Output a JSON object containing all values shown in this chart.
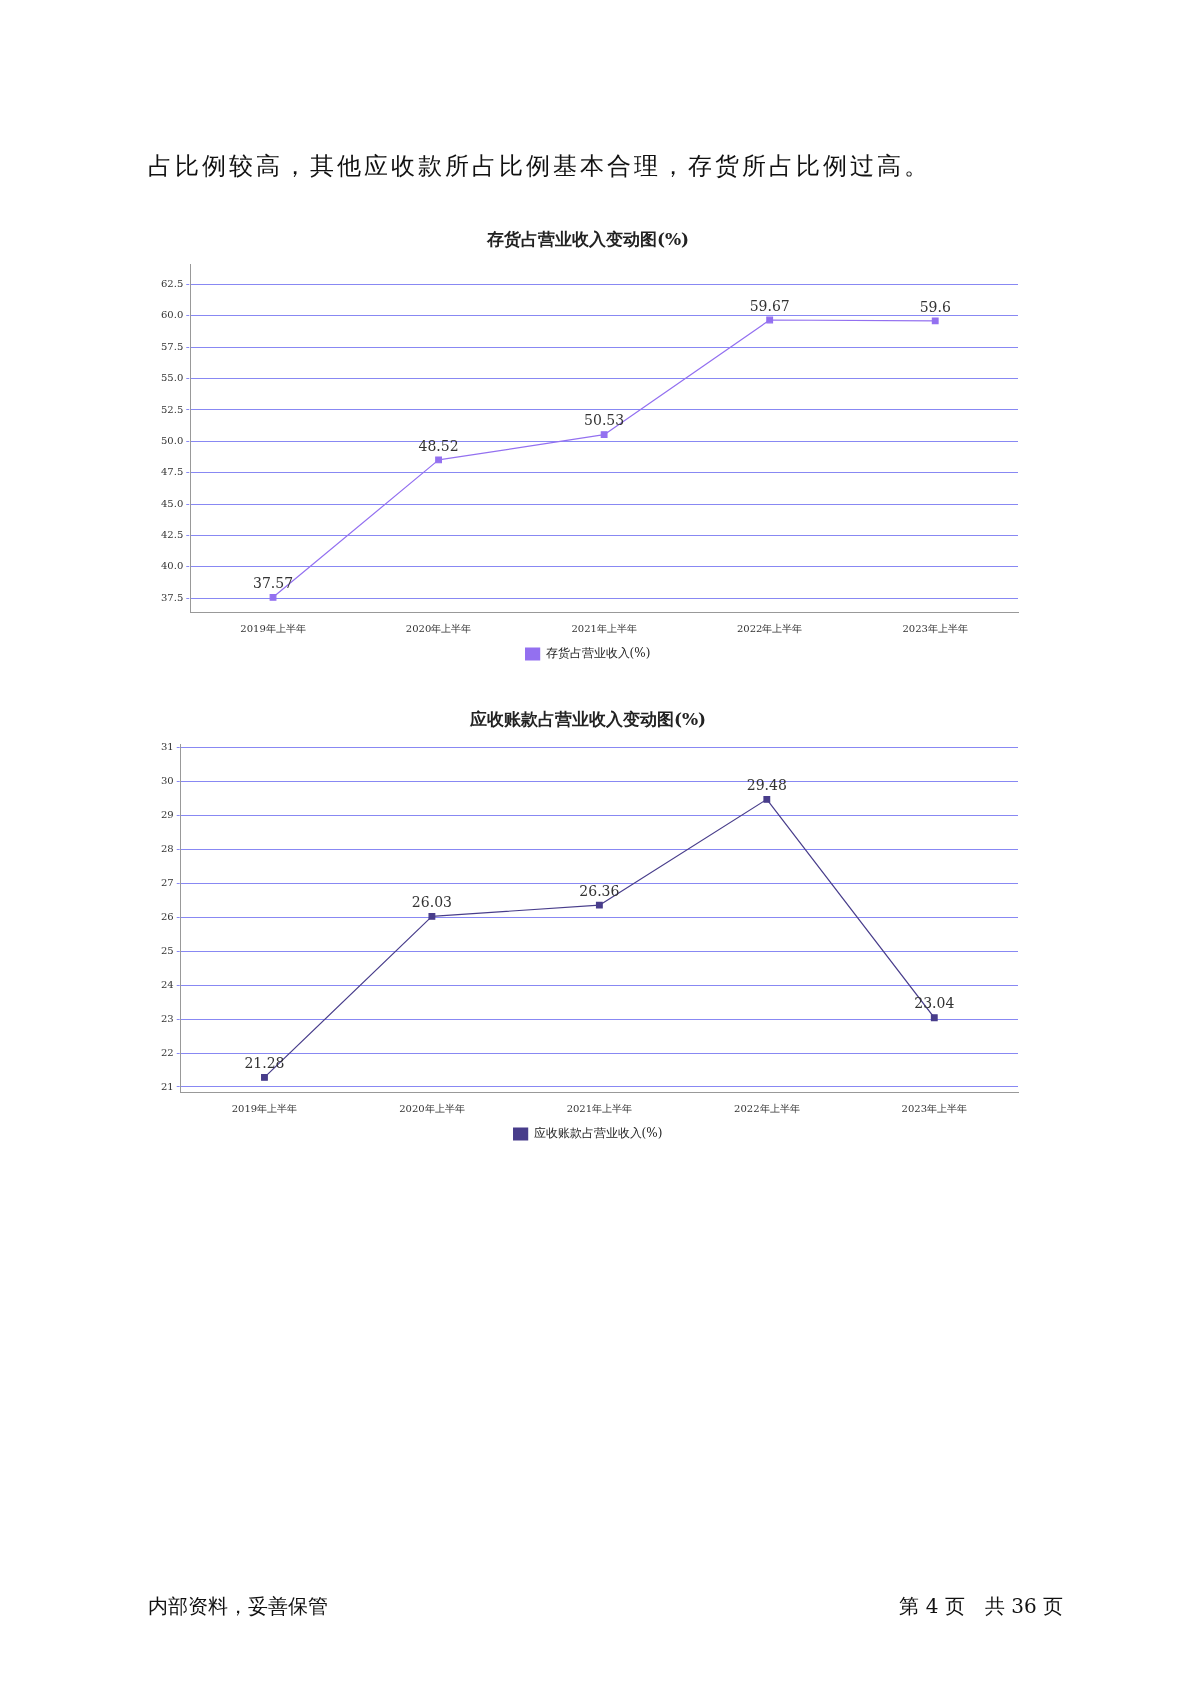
{
  "chart_data": [
    {
      "type": "line",
      "title": "存货占营业收入变动图(%)",
      "annotations": [
        "占比例较高，其他应收款所占比例基本合理，存货所占比例过高。"
      ],
      "categories": [
        "2019年上半年",
        "2020年上半年",
        "2021年上半年",
        "2022年上半年",
        "2023年上半年"
      ],
      "series": [
        {
          "name": "存货占营业收入(%)",
          "color": "#9370f0",
          "values": [
            37.57,
            48.52,
            50.53,
            59.67,
            59.6
          ]
        }
      ],
      "ylim": [
        36.4,
        64.1
      ],
      "yticks": [
        {
          "value": 37.5,
          "label": "37.5"
        },
        {
          "value": 40,
          "label": "40.0"
        },
        {
          "value": 42.5,
          "label": "42.5"
        },
        {
          "value": 45,
          "label": "45.0"
        },
        {
          "value": 47.5,
          "label": "47.5"
        },
        {
          "value": 50,
          "label": "50.0"
        },
        {
          "value": 52.5,
          "label": "52.5"
        },
        {
          "value": 55,
          "label": "55.0"
        },
        {
          "value": 57.5,
          "label": "57.5"
        },
        {
          "value": 60,
          "label": "60.0"
        },
        {
          "value": 62.5,
          "label": "62.5"
        }
      ],
      "grid": "y",
      "legend": "bottom",
      "marker": "square",
      "line_style": "solid",
      "data_labels": true
    },
    {
      "type": "line",
      "title": "应收账款占营业收入变动图(%)",
      "annotations": [
        "内部资料，妥善保管",
        "第 4 页　共 36 页"
      ],
      "categories": [
        "2019年上半年",
        "2020年上半年",
        "2021年上半年",
        "2022年上半年",
        "2023年上半年"
      ],
      "series": [
        {
          "name": "应收账款占营业收入(%)",
          "color": "#483d8b",
          "values": [
            21.28,
            26.03,
            26.36,
            29.48,
            23.04
          ]
        }
      ],
      "ylim": [
        20.85,
        31.1
      ],
      "yticks": [
        21,
        22,
        23,
        24,
        25,
        26,
        27,
        28,
        29,
        30,
        31
      ],
      "grid": "y",
      "legend": "bottom",
      "marker": "square",
      "line_style": "solid",
      "data_labels": true
    }
  ]
}
